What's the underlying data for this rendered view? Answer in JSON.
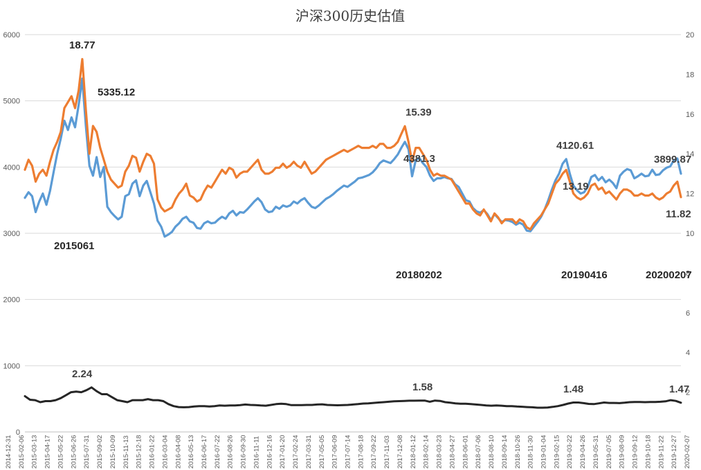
{
  "chart_data": {
    "type": "line",
    "title": "沪深300历史估值",
    "xlabel": "",
    "ylabel": "",
    "grid": true,
    "legend": "none",
    "y_left": {
      "range": [
        0,
        6000
      ],
      "ticks": [
        "0",
        "1000",
        "2000",
        "3000",
        "4000",
        "5000",
        "6000"
      ]
    },
    "y_right": {
      "range": [
        0,
        20
      ],
      "ticks": [
        "2",
        "4",
        "6",
        "8",
        "10",
        "12",
        "14",
        "16",
        "18",
        "20"
      ]
    },
    "x_ticks": [
      "2014-12-31",
      "2015-02-06",
      "2015-03-13",
      "2015-04-17",
      "2015-05-22",
      "2015-06-26",
      "2015-07-31",
      "2015-09-02",
      "2015-10-09",
      "2015-11-13",
      "2015-12-18",
      "2016-01-22",
      "2016-03-04",
      "2016-04-08",
      "2016-05-13",
      "2016-06-17",
      "2016-07-22",
      "2016-08-26",
      "2016-09-30",
      "2016-11-11",
      "2016-12-16",
      "2017-01-20",
      "2017-02-24",
      "2017-03-31",
      "2017-05-05",
      "2017-06-09",
      "2017-07-14",
      "2017-08-18",
      "2017-09-22",
      "2017-11-03",
      "2017-12-08",
      "2018-01-12",
      "2018-02-14",
      "2018-03-23",
      "2018-04-27",
      "2018-06-01",
      "2018-07-06",
      "2018-08-10",
      "2018-09-14",
      "2018-10-26",
      "2018-11-30",
      "2019-01-04",
      "2019-02-15",
      "2019-03-22",
      "2019-04-26",
      "2019-05-31",
      "2019-07-05",
      "2019-08-09",
      "2019-09-12",
      "2019-10-18",
      "2019-11-22",
      "2019-12-27",
      "2020-02-07"
    ],
    "series": [
      {
        "name": "",
        "axis": "left",
        "color": "#5b9bd5",
        "values": [
          3535,
          3620,
          3560,
          3320,
          3480,
          3600,
          3430,
          3640,
          3920,
          4200,
          4430,
          4700,
          4560,
          4750,
          4600,
          4940,
          5335,
          4620,
          4020,
          3870,
          4150,
          3850,
          4000,
          3400,
          3320,
          3260,
          3210,
          3250,
          3560,
          3590,
          3750,
          3800,
          3560,
          3720,
          3790,
          3620,
          3450,
          3190,
          3100,
          2950,
          2980,
          3020,
          3100,
          3150,
          3220,
          3250,
          3180,
          3160,
          3080,
          3070,
          3150,
          3180,
          3150,
          3160,
          3210,
          3250,
          3220,
          3300,
          3340,
          3270,
          3320,
          3310,
          3360,
          3420,
          3480,
          3530,
          3470,
          3360,
          3320,
          3330,
          3400,
          3370,
          3420,
          3400,
          3420,
          3480,
          3450,
          3500,
          3530,
          3460,
          3400,
          3380,
          3420,
          3470,
          3520,
          3550,
          3590,
          3640,
          3680,
          3720,
          3700,
          3740,
          3780,
          3830,
          3840,
          3860,
          3880,
          3920,
          3980,
          4060,
          4100,
          4080,
          4060,
          4120,
          4190,
          4290,
          4381,
          4270,
          3860,
          4100,
          4140,
          4060,
          4000,
          3870,
          3790,
          3830,
          3830,
          3850,
          3830,
          3820,
          3740,
          3700,
          3600,
          3500,
          3480,
          3380,
          3330,
          3310,
          3350,
          3290,
          3200,
          3290,
          3230,
          3170,
          3200,
          3190,
          3170,
          3130,
          3160,
          3130,
          3040,
          3030,
          3100,
          3170,
          3250,
          3360,
          3500,
          3660,
          3800,
          3900,
          4050,
          4120.61,
          3900,
          3720,
          3650,
          3600,
          3620,
          3700,
          3850,
          3880,
          3800,
          3850,
          3770,
          3810,
          3760,
          3680,
          3870,
          3930,
          3970,
          3950,
          3830,
          3860,
          3900,
          3860,
          3870,
          3960,
          3880,
          3890,
          3950,
          3990,
          4010,
          4100,
          4130,
          3899.87
        ]
      },
      {
        "name": "",
        "axis": "right",
        "color": "#ed7d31",
        "values": [
          13.2,
          13.7,
          13.4,
          12.6,
          13.0,
          13.2,
          12.9,
          13.6,
          14.2,
          14.6,
          15.1,
          16.3,
          16.6,
          16.9,
          16.3,
          17.2,
          18.77,
          16.2,
          14.0,
          15.4,
          15.1,
          14.3,
          13.7,
          13.1,
          12.7,
          12.5,
          12.3,
          12.4,
          13.1,
          13.4,
          13.9,
          13.8,
          13.1,
          13.6,
          14.0,
          13.9,
          13.5,
          11.7,
          11.3,
          11.1,
          11.2,
          11.3,
          11.7,
          12.0,
          12.2,
          12.5,
          11.9,
          11.8,
          11.6,
          11.7,
          12.1,
          12.4,
          12.3,
          12.6,
          12.9,
          13.2,
          13.0,
          13.3,
          13.2,
          12.8,
          13.0,
          13.1,
          13.1,
          13.3,
          13.5,
          13.7,
          13.2,
          13.0,
          13.0,
          13.1,
          13.3,
          13.3,
          13.5,
          13.3,
          13.4,
          13.6,
          13.4,
          13.3,
          13.6,
          13.3,
          13.0,
          13.1,
          13.3,
          13.5,
          13.7,
          13.8,
          13.9,
          14.0,
          14.1,
          14.2,
          14.1,
          14.2,
          14.3,
          14.4,
          14.3,
          14.3,
          14.3,
          14.4,
          14.3,
          14.5,
          14.5,
          14.3,
          14.3,
          14.4,
          14.6,
          15.0,
          15.39,
          14.6,
          13.6,
          14.3,
          14.3,
          14.0,
          13.7,
          13.2,
          12.9,
          13.0,
          12.9,
          12.9,
          12.8,
          12.7,
          12.4,
          12.1,
          11.8,
          11.5,
          11.5,
          11.2,
          11.0,
          10.9,
          11.2,
          10.9,
          10.6,
          11.0,
          10.8,
          10.5,
          10.7,
          10.7,
          10.7,
          10.5,
          10.7,
          10.6,
          10.3,
          10.2,
          10.5,
          10.7,
          10.9,
          11.2,
          11.5,
          12.0,
          12.5,
          12.7,
          13.0,
          13.19,
          12.6,
          12.0,
          11.8,
          11.7,
          11.8,
          12.0,
          12.4,
          12.5,
          12.2,
          12.3,
          12.0,
          12.1,
          11.9,
          11.7,
          12.0,
          12.2,
          12.2,
          12.1,
          11.9,
          11.9,
          12.0,
          11.9,
          11.9,
          12.0,
          11.8,
          11.7,
          11.8,
          12.0,
          12.1,
          12.4,
          12.6,
          11.82
        ]
      },
      {
        "name": "",
        "axis": "right",
        "color": "#262626",
        "values": [
          1.8,
          1.62,
          1.6,
          1.5,
          1.55,
          1.55,
          1.6,
          1.7,
          1.85,
          2.0,
          2.03,
          2.0,
          2.1,
          2.24,
          2.05,
          1.9,
          1.9,
          1.75,
          1.6,
          1.55,
          1.5,
          1.6,
          1.6,
          1.6,
          1.65,
          1.6,
          1.6,
          1.55,
          1.4,
          1.3,
          1.25,
          1.24,
          1.25,
          1.28,
          1.3,
          1.3,
          1.28,
          1.3,
          1.33,
          1.32,
          1.33,
          1.33,
          1.35,
          1.38,
          1.36,
          1.35,
          1.33,
          1.32,
          1.36,
          1.4,
          1.42,
          1.4,
          1.35,
          1.35,
          1.35,
          1.36,
          1.36,
          1.38,
          1.39,
          1.36,
          1.35,
          1.34,
          1.35,
          1.36,
          1.38,
          1.4,
          1.43,
          1.44,
          1.46,
          1.48,
          1.5,
          1.52,
          1.54,
          1.55,
          1.56,
          1.57,
          1.57,
          1.58,
          1.58,
          1.52,
          1.58,
          1.56,
          1.5,
          1.47,
          1.44,
          1.42,
          1.42,
          1.4,
          1.38,
          1.36,
          1.33,
          1.32,
          1.33,
          1.32,
          1.3,
          1.3,
          1.28,
          1.27,
          1.25,
          1.24,
          1.22,
          1.22,
          1.23,
          1.26,
          1.3,
          1.36,
          1.43,
          1.48,
          1.48,
          1.45,
          1.41,
          1.4,
          1.44,
          1.48,
          1.46,
          1.46,
          1.45,
          1.47,
          1.5,
          1.51,
          1.51,
          1.5,
          1.51,
          1.51,
          1.52,
          1.54,
          1.6,
          1.56,
          1.47
        ]
      }
    ],
    "annotations": [
      "18.77",
      "5335.12",
      "2015061",
      "15.39",
      "4381.3",
      "20180202",
      "4120.61",
      "13.19",
      "20190416",
      "3899.87",
      "11.82",
      "20200207",
      "2.24",
      "1.58",
      "1.48",
      "1.47"
    ]
  }
}
